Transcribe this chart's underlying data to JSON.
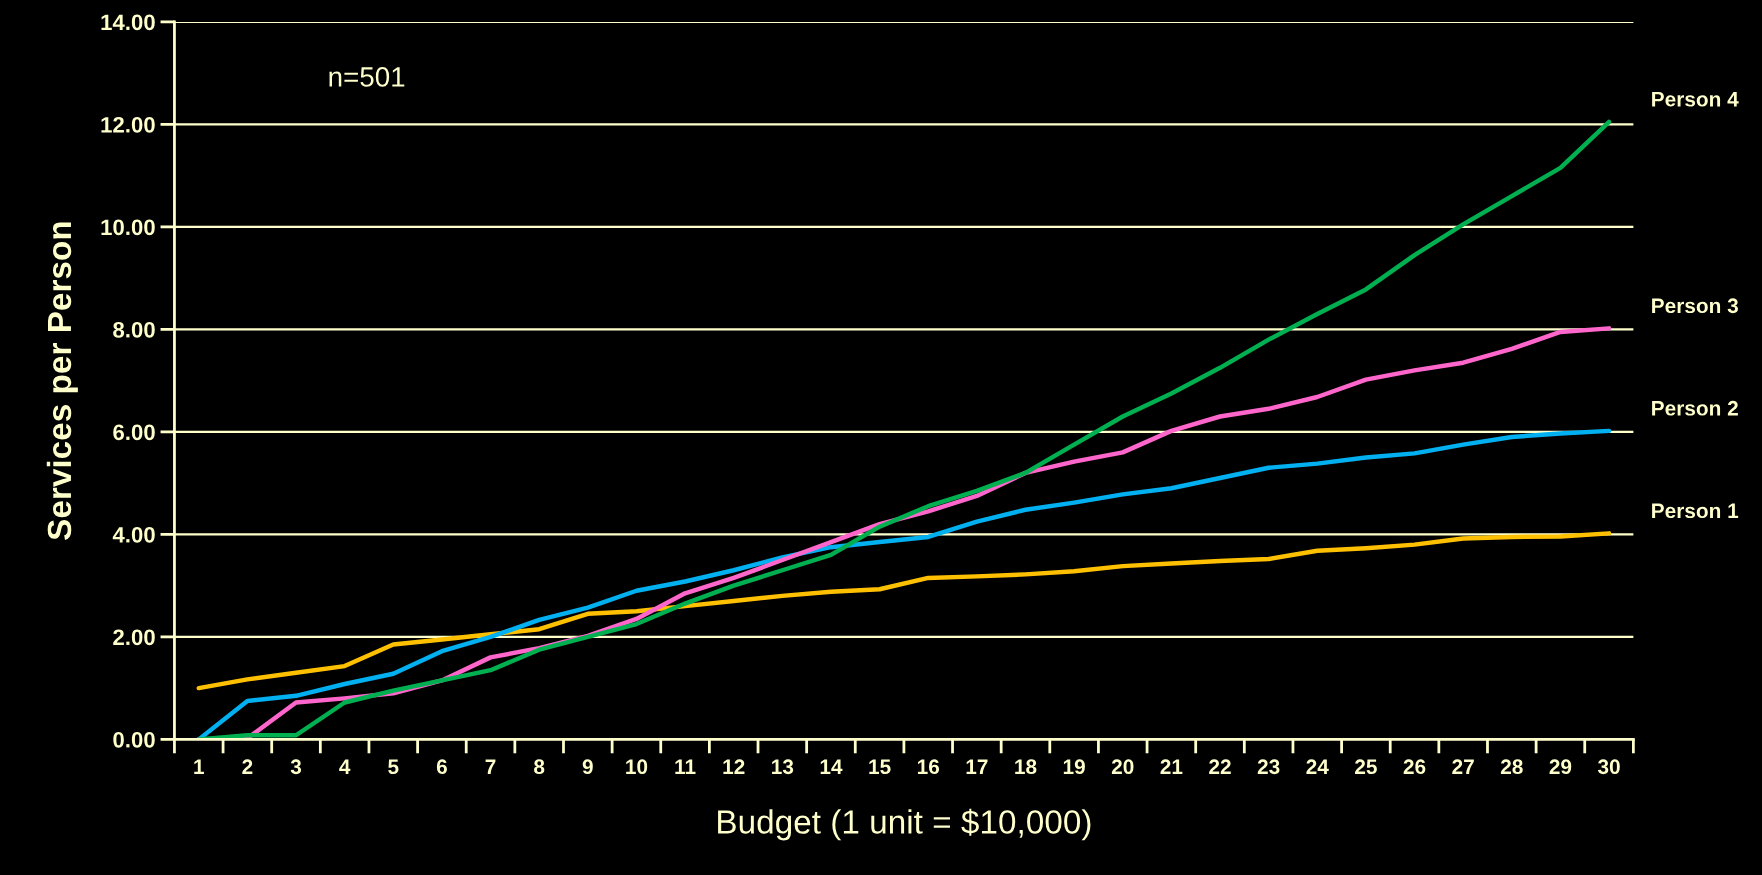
{
  "chart_data": {
    "type": "line",
    "xlabel": "Budget (1 unit = $10,000)",
    "ylabel": "Services per Person",
    "annotations": [
      "n=501"
    ],
    "categories": [
      "1",
      "2",
      "3",
      "4",
      "5",
      "6",
      "7",
      "8",
      "9",
      "10",
      "11",
      "12",
      "13",
      "14",
      "15",
      "16",
      "17",
      "18",
      "19",
      "20",
      "21",
      "22",
      "23",
      "24",
      "25",
      "26",
      "27",
      "28",
      "29",
      "30"
    ],
    "ylim": [
      0,
      14
    ],
    "yticks": [
      {
        "value": 0,
        "label": "0.00"
      },
      {
        "value": 2,
        "label": "2.00"
      },
      {
        "value": 4,
        "label": "4.00"
      },
      {
        "value": 6,
        "label": "6.00"
      },
      {
        "value": 8,
        "label": "8.00"
      },
      {
        "value": 10,
        "label": "10.00"
      },
      {
        "value": 12,
        "label": "12.00"
      },
      {
        "value": 14,
        "label": "14.00"
      }
    ],
    "grid": "y",
    "legend": false,
    "marker": "none",
    "line_style": "solid",
    "series": [
      {
        "name": "Person 1",
        "color": "#ffc000",
        "values": [
          1.0,
          1.17,
          1.3,
          1.43,
          1.85,
          1.95,
          2.05,
          2.15,
          2.45,
          2.5,
          2.6,
          2.7,
          2.8,
          2.88,
          2.93,
          3.15,
          3.18,
          3.22,
          3.28,
          3.38,
          3.43,
          3.48,
          3.52,
          3.68,
          3.73,
          3.8,
          3.92,
          3.95,
          3.96,
          4.02
        ]
      },
      {
        "name": "Person 2",
        "color": "#00b0f0",
        "values": [
          0,
          0.75,
          0.85,
          1.08,
          1.28,
          1.72,
          2.0,
          2.33,
          2.57,
          2.9,
          3.08,
          3.3,
          3.55,
          3.75,
          3.85,
          3.95,
          4.25,
          4.48,
          4.62,
          4.78,
          4.9,
          5.1,
          5.3,
          5.38,
          5.5,
          5.58,
          5.75,
          5.9,
          5.97,
          6.02
        ]
      },
      {
        "name": "Person 3",
        "color": "#ff66cc",
        "values": [
          0,
          0.02,
          0.72,
          0.8,
          0.9,
          1.15,
          1.6,
          1.78,
          2.02,
          2.35,
          2.85,
          3.15,
          3.5,
          3.85,
          4.2,
          4.45,
          4.75,
          5.2,
          5.42,
          5.6,
          6.02,
          6.3,
          6.45,
          6.68,
          7.02,
          7.2,
          7.35,
          7.62,
          7.95,
          8.02
        ]
      },
      {
        "name": "Person 4",
        "color": "#00b050",
        "values": [
          0,
          0.08,
          0.08,
          0.72,
          0.95,
          1.15,
          1.35,
          1.75,
          2.0,
          2.25,
          2.65,
          3.0,
          3.3,
          3.6,
          4.15,
          4.55,
          4.85,
          5.2,
          5.75,
          6.3,
          6.75,
          7.25,
          7.8,
          8.3,
          8.78,
          9.45,
          10.05,
          10.6,
          11.15,
          12.05
        ]
      }
    ]
  }
}
